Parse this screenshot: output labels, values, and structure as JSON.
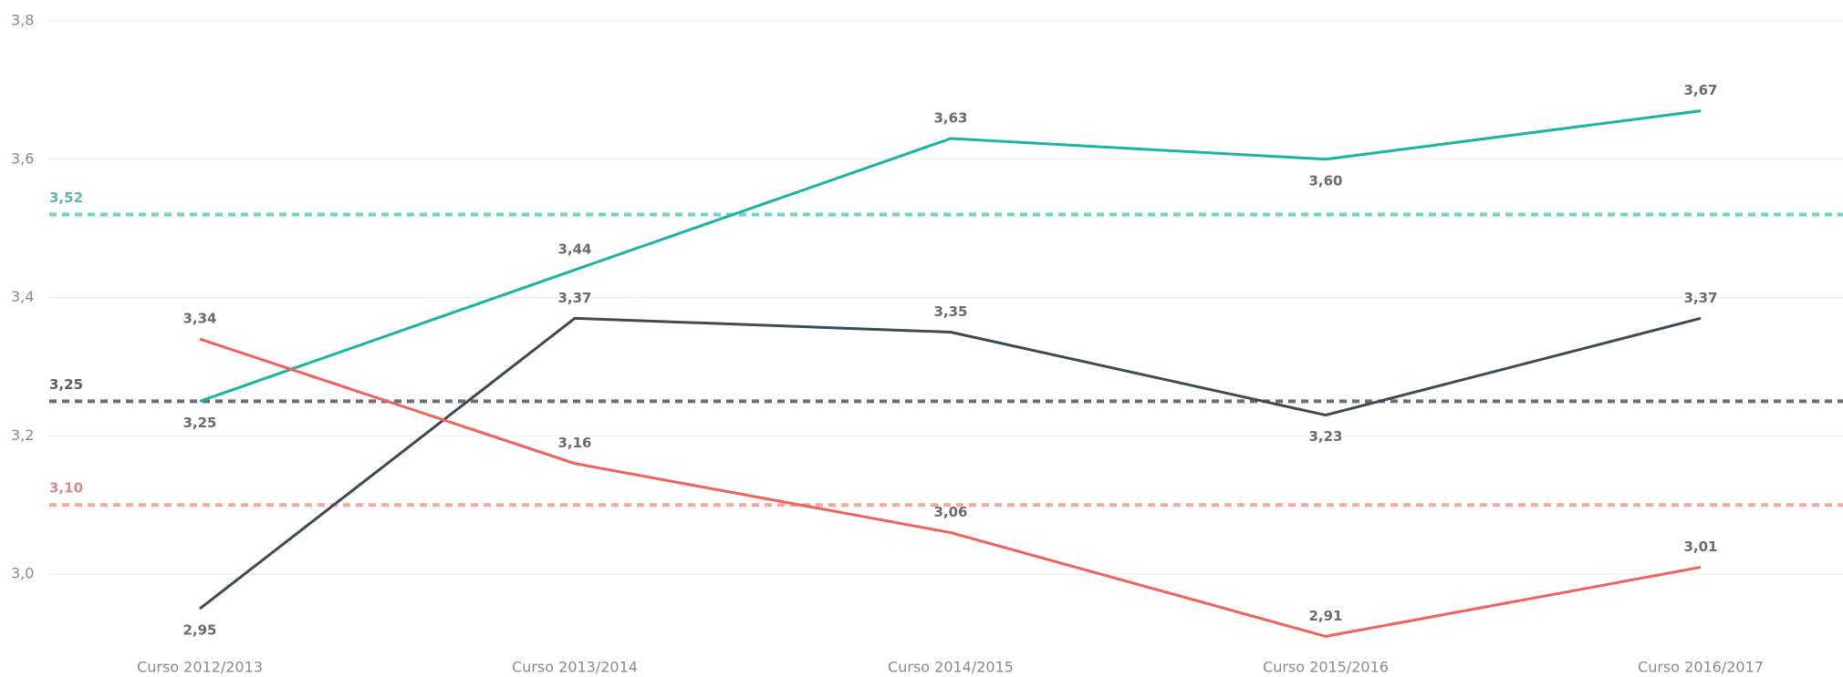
{
  "chart_data": {
    "type": "line",
    "categories": [
      "Curso 2012/2013",
      "Curso 2013/2014",
      "Curso 2014/2015",
      "Curso 2015/2016",
      "Curso 2016/2017"
    ],
    "series": [
      {
        "color": "#1ab3a6",
        "values": [
          3.25,
          3.44,
          3.63,
          3.6,
          3.67
        ],
        "value_labels": [
          "3,25",
          "3,44",
          "3,63",
          "3,60",
          "3,67"
        ]
      },
      {
        "color": "#3d4a4f",
        "values": [
          2.95,
          3.37,
          3.35,
          3.23,
          3.37
        ],
        "value_labels": [
          "2,95",
          "3,37",
          "3,35",
          "3,23",
          "3,37"
        ]
      },
      {
        "color": "#f0625a",
        "values": [
          3.34,
          3.16,
          3.06,
          2.91,
          3.01
        ],
        "value_labels": [
          "3,34",
          "3,16",
          "3,06",
          "2,91",
          "3,01"
        ]
      }
    ],
    "reference_lines": [
      {
        "value": 3.52,
        "label": "3,52",
        "color": "#6fd3c9"
      },
      {
        "value": 3.25,
        "label": "3,25",
        "color": "#6b6f72"
      },
      {
        "value": 3.1,
        "label": "3,10",
        "color": "#f5a6a2"
      }
    ],
    "ylim": [
      2.9,
      3.8
    ],
    "yticks": [
      {
        "value": 3.0,
        "label": "3,0"
      },
      {
        "value": 3.2,
        "label": "3,2"
      },
      {
        "value": 3.4,
        "label": "3,4"
      },
      {
        "value": 3.6,
        "label": "3,6"
      },
      {
        "value": 3.8,
        "label": "3,8"
      }
    ],
    "grid": true
  }
}
